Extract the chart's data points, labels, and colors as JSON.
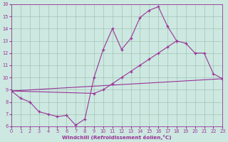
{
  "xlabel": "Windchill (Refroidissement éolien,°C)",
  "bg_color": "#cce8e0",
  "line_color": "#993399",
  "grid_color": "#99bbaa",
  "xlim": [
    0,
    23
  ],
  "ylim": [
    6,
    16
  ],
  "xticks": [
    0,
    1,
    2,
    3,
    4,
    5,
    6,
    7,
    8,
    9,
    10,
    11,
    12,
    13,
    14,
    15,
    16,
    17,
    18,
    19,
    20,
    21,
    22,
    23
  ],
  "yticks": [
    6,
    7,
    8,
    9,
    10,
    11,
    12,
    13,
    14,
    15,
    16
  ],
  "curve1_x": [
    0,
    1,
    2,
    3,
    4,
    5,
    6,
    7,
    8,
    9,
    10,
    11,
    12,
    13,
    14,
    15,
    16,
    17,
    18
  ],
  "curve1_y": [
    8.9,
    8.3,
    8.0,
    7.2,
    7.0,
    6.8,
    6.9,
    6.1,
    6.6,
    10.0,
    12.3,
    14.0,
    12.3,
    13.2,
    14.9,
    15.5,
    15.8,
    14.2,
    13.0
  ],
  "curve2_x": [
    0,
    9,
    10,
    11,
    12,
    13,
    14,
    15,
    16,
    17,
    18,
    19,
    20,
    21,
    22,
    23
  ],
  "curve2_y": [
    8.9,
    8.7,
    9.0,
    9.5,
    10.0,
    10.5,
    11.0,
    11.5,
    12.0,
    12.5,
    13.0,
    12.8,
    12.0,
    12.0,
    10.3,
    9.9
  ],
  "curve3_x": [
    0,
    23
  ],
  "curve3_y": [
    8.9,
    9.9
  ]
}
